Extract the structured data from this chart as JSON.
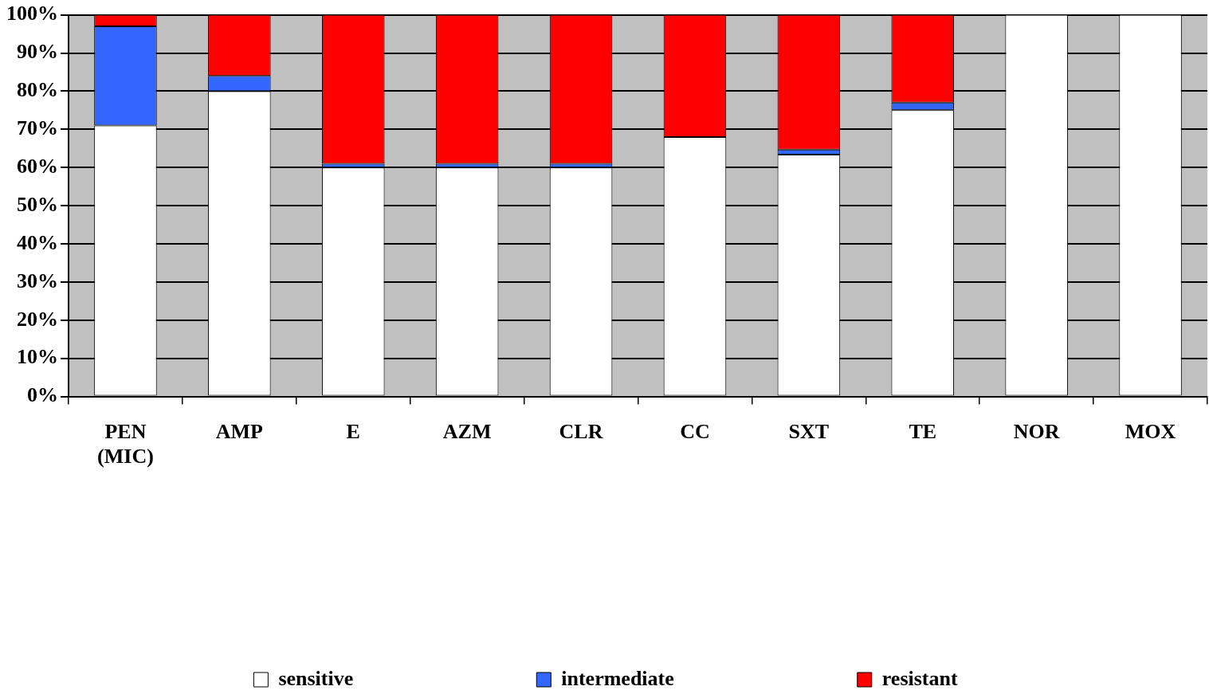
{
  "chart_data": {
    "type": "bar",
    "stacked": true,
    "categories": [
      "PEN (MIC)",
      "AMP",
      "E",
      "AZM",
      "CLR",
      "CC",
      "SXT",
      "TE",
      "NOR",
      "MOX"
    ],
    "series": [
      {
        "name": "sensitive",
        "color": "#ffffff",
        "values": [
          71,
          80,
          60,
          60,
          60,
          68,
          63.4,
          75,
          100,
          100
        ]
      },
      {
        "name": "intermediate",
        "color": "#3366ff",
        "values": [
          26,
          4,
          1,
          1,
          1,
          0,
          1.3,
          2,
          0,
          0
        ]
      },
      {
        "name": "resistant",
        "color": "#ff0000",
        "values": [
          3,
          16,
          39,
          39,
          39,
          32,
          35.3,
          23,
          0,
          0
        ]
      }
    ],
    "ylim": [
      0,
      100
    ],
    "yticks": [
      {
        "value": 0,
        "label": "0%"
      },
      {
        "value": 10,
        "label": "10%"
      },
      {
        "value": 20,
        "label": "20%"
      },
      {
        "value": 30,
        "label": "30%"
      },
      {
        "value": 40,
        "label": "40%"
      },
      {
        "value": 50,
        "label": "50%"
      },
      {
        "value": 60,
        "label": "60%"
      },
      {
        "value": 70,
        "label": "70%"
      },
      {
        "value": 80,
        "label": "80%"
      },
      {
        "value": 90,
        "label": "90%"
      },
      {
        "value": 100,
        "label": "100%"
      }
    ],
    "grid": "y",
    "legend": "bottom"
  }
}
